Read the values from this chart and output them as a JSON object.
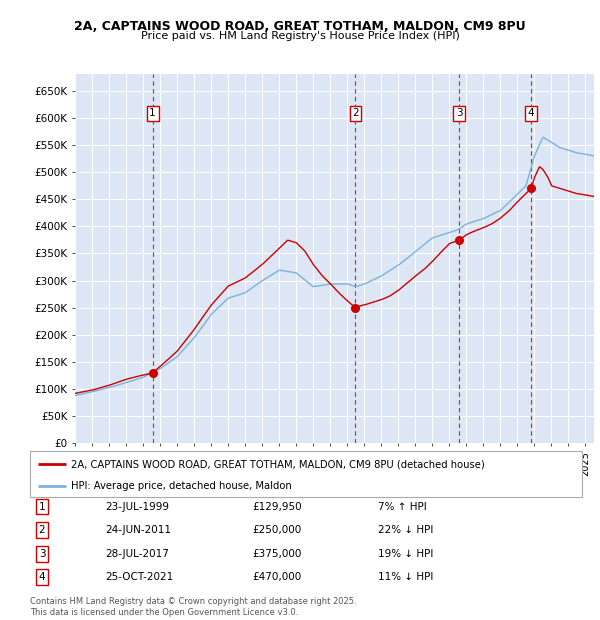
{
  "title_line1": "2A, CAPTAINS WOOD ROAD, GREAT TOTHAM, MALDON, CM9 8PU",
  "title_line2": "Price paid vs. HM Land Registry's House Price Index (HPI)",
  "background_color": "#dce6f5",
  "ylim": [
    0,
    680000
  ],
  "yticks": [
    0,
    50000,
    100000,
    150000,
    200000,
    250000,
    300000,
    350000,
    400000,
    450000,
    500000,
    550000,
    600000,
    650000
  ],
  "ytick_labels": [
    "£0",
    "£50K",
    "£100K",
    "£150K",
    "£200K",
    "£250K",
    "£300K",
    "£350K",
    "£400K",
    "£450K",
    "£500K",
    "£550K",
    "£600K",
    "£650K"
  ],
  "hpi_color": "#7ab3d9",
  "price_color": "#cc0000",
  "sale_dates_num": [
    1999.56,
    2011.48,
    2017.57,
    2021.81
  ],
  "sale_prices": [
    129950,
    250000,
    375000,
    470000
  ],
  "sale_labels": [
    "1",
    "2",
    "3",
    "4"
  ],
  "vline_color": "#cc0000",
  "legend_label_price": "2A, CAPTAINS WOOD ROAD, GREAT TOTHAM, MALDON, CM9 8PU (detached house)",
  "legend_label_hpi": "HPI: Average price, detached house, Maldon",
  "table_data": [
    [
      "1",
      "23-JUL-1999",
      "£129,950",
      "7% ↑ HPI"
    ],
    [
      "2",
      "24-JUN-2011",
      "£250,000",
      "22% ↓ HPI"
    ],
    [
      "3",
      "28-JUL-2017",
      "£375,000",
      "19% ↓ HPI"
    ],
    [
      "4",
      "25-OCT-2021",
      "£470,000",
      "11% ↓ HPI"
    ]
  ],
  "footnote": "Contains HM Land Registry data © Crown copyright and database right 2025.\nThis data is licensed under the Open Government Licence v3.0.",
  "xlim_start": 1995.0,
  "xlim_end": 2025.5,
  "hpi_waypoints": [
    [
      1995.0,
      88000
    ],
    [
      1996.0,
      95000
    ],
    [
      1997.0,
      103000
    ],
    [
      1998.0,
      112000
    ],
    [
      1999.0,
      122000
    ],
    [
      2000.0,
      138000
    ],
    [
      2001.0,
      160000
    ],
    [
      2002.0,
      195000
    ],
    [
      2003.0,
      238000
    ],
    [
      2004.0,
      268000
    ],
    [
      2005.0,
      278000
    ],
    [
      2006.0,
      300000
    ],
    [
      2007.0,
      320000
    ],
    [
      2008.0,
      315000
    ],
    [
      2009.0,
      290000
    ],
    [
      2010.0,
      295000
    ],
    [
      2011.0,
      295000
    ],
    [
      2011.5,
      290000
    ],
    [
      2012.0,
      295000
    ],
    [
      2013.0,
      310000
    ],
    [
      2014.0,
      330000
    ],
    [
      2015.0,
      355000
    ],
    [
      2016.0,
      380000
    ],
    [
      2017.0,
      390000
    ],
    [
      2017.5,
      395000
    ],
    [
      2018.0,
      405000
    ],
    [
      2019.0,
      415000
    ],
    [
      2020.0,
      430000
    ],
    [
      2021.0,
      460000
    ],
    [
      2021.5,
      475000
    ],
    [
      2022.0,
      530000
    ],
    [
      2022.5,
      565000
    ],
    [
      2023.0,
      555000
    ],
    [
      2023.5,
      545000
    ],
    [
      2024.0,
      540000
    ],
    [
      2024.5,
      535000
    ],
    [
      2025.5,
      530000
    ]
  ],
  "price_waypoints": [
    [
      1995.0,
      92000
    ],
    [
      1996.0,
      98000
    ],
    [
      1997.0,
      107000
    ],
    [
      1998.0,
      118000
    ],
    [
      1999.0,
      126000
    ],
    [
      1999.56,
      129950
    ],
    [
      2000.0,
      142000
    ],
    [
      2001.0,
      170000
    ],
    [
      2002.0,
      210000
    ],
    [
      2003.0,
      255000
    ],
    [
      2004.0,
      290000
    ],
    [
      2005.0,
      305000
    ],
    [
      2006.0,
      330000
    ],
    [
      2007.0,
      360000
    ],
    [
      2007.5,
      375000
    ],
    [
      2008.0,
      370000
    ],
    [
      2008.5,
      355000
    ],
    [
      2009.0,
      330000
    ],
    [
      2009.5,
      310000
    ],
    [
      2010.0,
      295000
    ],
    [
      2010.5,
      278000
    ],
    [
      2011.0,
      263000
    ],
    [
      2011.48,
      250000
    ],
    [
      2011.6,
      252000
    ],
    [
      2012.0,
      255000
    ],
    [
      2012.5,
      260000
    ],
    [
      2013.0,
      265000
    ],
    [
      2013.5,
      272000
    ],
    [
      2014.0,
      282000
    ],
    [
      2014.5,
      295000
    ],
    [
      2015.0,
      308000
    ],
    [
      2015.5,
      320000
    ],
    [
      2016.0,
      335000
    ],
    [
      2016.5,
      352000
    ],
    [
      2017.0,
      368000
    ],
    [
      2017.57,
      375000
    ],
    [
      2018.0,
      385000
    ],
    [
      2018.5,
      392000
    ],
    [
      2019.0,
      398000
    ],
    [
      2019.5,
      405000
    ],
    [
      2020.0,
      415000
    ],
    [
      2020.5,
      428000
    ],
    [
      2021.0,
      445000
    ],
    [
      2021.81,
      470000
    ],
    [
      2022.0,
      490000
    ],
    [
      2022.3,
      510000
    ],
    [
      2022.5,
      505000
    ],
    [
      2022.8,
      490000
    ],
    [
      2023.0,
      475000
    ],
    [
      2023.5,
      470000
    ],
    [
      2024.0,
      465000
    ],
    [
      2024.5,
      460000
    ],
    [
      2025.5,
      455000
    ]
  ]
}
